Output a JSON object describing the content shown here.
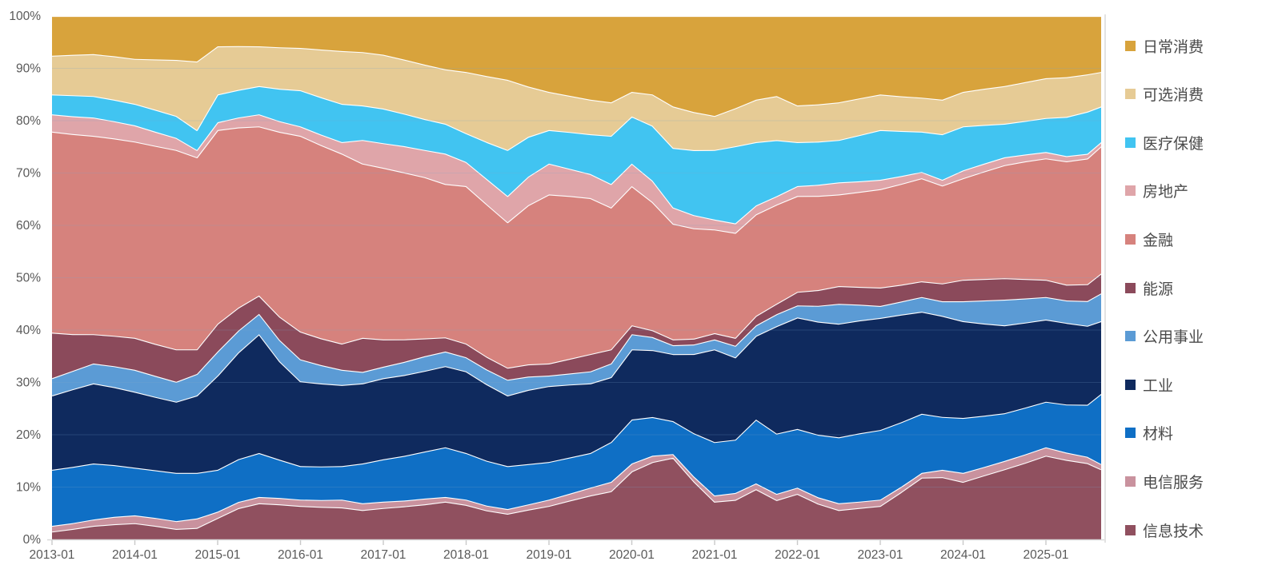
{
  "chart_data": {
    "type": "area",
    "stacked_percent": true,
    "title": "",
    "xlabel": "",
    "ylabel": "",
    "ylim": [
      0,
      100
    ],
    "x_max_month": 152,
    "x_months": [
      0,
      3,
      6,
      9,
      12,
      15,
      18,
      21,
      24,
      27,
      30,
      33,
      36,
      39,
      42,
      45,
      48,
      51,
      54,
      57,
      60,
      63,
      66,
      69,
      72,
      75,
      78,
      81,
      84,
      87,
      90,
      93,
      96,
      99,
      102,
      105,
      108,
      111,
      114,
      117,
      120,
      123,
      126,
      129,
      132,
      135,
      138,
      141,
      144,
      147,
      150,
      152
    ],
    "x_ticks": [
      {
        "m": 0,
        "label": "2013-01"
      },
      {
        "m": 12,
        "label": "2014-01"
      },
      {
        "m": 24,
        "label": "2015-01"
      },
      {
        "m": 36,
        "label": "2016-01"
      },
      {
        "m": 48,
        "label": "2017-01"
      },
      {
        "m": 60,
        "label": "2018-01"
      },
      {
        "m": 72,
        "label": "2019-01"
      },
      {
        "m": 84,
        "label": "2020-01"
      },
      {
        "m": 96,
        "label": "2021-01"
      },
      {
        "m": 108,
        "label": "2022-01"
      },
      {
        "m": 120,
        "label": "2023-01"
      },
      {
        "m": 132,
        "label": "2024-01"
      },
      {
        "m": 144,
        "label": "2025-01"
      }
    ],
    "y_ticks": [
      {
        "v": 0,
        "label": "0%"
      },
      {
        "v": 10,
        "label": "10%"
      },
      {
        "v": 20,
        "label": "20%"
      },
      {
        "v": 30,
        "label": "30%"
      },
      {
        "v": 40,
        "label": "40%"
      },
      {
        "v": 50,
        "label": "50%"
      },
      {
        "v": 60,
        "label": "60%"
      },
      {
        "v": 70,
        "label": "70%"
      },
      {
        "v": 80,
        "label": "80%"
      },
      {
        "v": 90,
        "label": "90%"
      },
      {
        "v": 100,
        "label": "100%"
      }
    ],
    "series_bottom_to_top": [
      {
        "name": "信息技术",
        "color": "#90505F",
        "values": [
          1.5,
          2.0,
          2.6,
          2.9,
          3.1,
          2.6,
          2.0,
          2.2,
          4.1,
          6.0,
          6.9,
          6.6,
          6.4,
          6.2,
          6.1,
          5.6,
          6.0,
          6.3,
          6.7,
          7.2,
          6.6,
          5.5,
          4.9,
          5.6,
          6.4,
          7.4,
          8.4,
          9.2,
          13.0,
          14.8,
          15.6,
          11.0,
          7.2,
          7.5,
          9.6,
          7.5,
          8.7,
          6.8,
          5.6,
          6.0,
          6.4,
          9.0,
          11.8,
          11.9,
          11.0,
          12.2,
          13.4,
          14.6,
          16.0,
          15.2,
          14.5,
          13.4
        ]
      },
      {
        "name": "电信服务",
        "color": "#C9929E",
        "values": [
          1.1,
          1.1,
          1.2,
          1.4,
          1.5,
          1.5,
          1.5,
          1.8,
          1.2,
          1.2,
          1.2,
          1.2,
          1.2,
          1.3,
          1.5,
          1.3,
          1.2,
          1.1,
          1.1,
          0.9,
          1.0,
          0.9,
          0.9,
          1.0,
          1.2,
          1.3,
          1.5,
          1.8,
          1.5,
          1.2,
          0.7,
          0.9,
          1.2,
          1.3,
          1.1,
          1.2,
          1.2,
          1.2,
          1.3,
          1.2,
          1.2,
          1.0,
          0.9,
          1.4,
          1.7,
          1.6,
          1.6,
          1.6,
          1.6,
          1.4,
          1.2,
          1.0
        ]
      },
      {
        "name": "材料",
        "color": "#0F6FC5",
        "values": [
          10.7,
          10.7,
          10.7,
          9.9,
          9.1,
          9.1,
          9.2,
          8.7,
          8.0,
          8.2,
          8.4,
          7.2,
          6.4,
          6.4,
          6.4,
          7.6,
          8.1,
          8.5,
          9.0,
          9.5,
          8.9,
          8.5,
          8.2,
          7.6,
          7.2,
          6.9,
          6.6,
          7.6,
          8.4,
          7.4,
          6.3,
          8.2,
          10.2,
          10.1,
          12.2,
          11.5,
          11.2,
          11.9,
          12.6,
          13.0,
          13.3,
          12.3,
          11.3,
          10.1,
          10.5,
          9.8,
          9.1,
          8.9,
          8.7,
          9.2,
          9.9,
          13.4
        ]
      },
      {
        "name": "工业",
        "color": "#0F2A5E",
        "values": [
          14.2,
          14.8,
          15.3,
          14.9,
          14.5,
          14.0,
          13.6,
          14.8,
          18.0,
          20.5,
          22.7,
          18.5,
          16.2,
          15.8,
          15.5,
          15.3,
          15.5,
          15.4,
          15.4,
          15.5,
          15.6,
          14.5,
          13.5,
          14.0,
          14.5,
          13.9,
          13.3,
          12.4,
          13.4,
          12.8,
          12.8,
          15.0,
          17.7,
          15.6,
          16.0,
          20.5,
          21.3,
          21.5,
          21.7,
          21.5,
          21.4,
          20.5,
          19.5,
          19.3,
          18.5,
          17.6,
          16.8,
          16.2,
          15.7,
          15.6,
          15.0,
          13.9
        ]
      },
      {
        "name": "公用事业",
        "color": "#5B9BD5",
        "values": [
          3.3,
          3.5,
          3.8,
          4.0,
          4.2,
          4.0,
          3.8,
          4.1,
          4.6,
          4.2,
          3.9,
          4.0,
          4.2,
          3.5,
          2.9,
          2.2,
          2.2,
          2.5,
          2.8,
          2.8,
          2.7,
          2.8,
          3.0,
          2.5,
          2.0,
          2.1,
          2.3,
          2.6,
          2.9,
          2.5,
          1.7,
          1.8,
          1.9,
          2.2,
          2.0,
          2.3,
          2.3,
          3.0,
          3.8,
          3.0,
          2.3,
          2.5,
          2.8,
          2.8,
          3.8,
          4.4,
          4.9,
          4.6,
          4.3,
          4.3,
          4.7,
          5.3
        ]
      },
      {
        "name": "能源",
        "color": "#8B4A5B",
        "values": [
          8.7,
          7.0,
          5.6,
          5.8,
          6.1,
          6.1,
          6.2,
          4.7,
          5.3,
          4.4,
          3.5,
          4.4,
          5.3,
          5.1,
          5.0,
          6.5,
          5.2,
          4.3,
          3.4,
          2.7,
          2.6,
          2.4,
          2.3,
          2.3,
          2.3,
          2.8,
          3.3,
          2.7,
          1.7,
          1.3,
          1.1,
          1.1,
          1.2,
          1.5,
          1.8,
          2.0,
          2.6,
          3.0,
          3.4,
          3.4,
          3.5,
          3.2,
          3.0,
          3.4,
          4.1,
          4.1,
          4.1,
          3.7,
          3.3,
          3.0,
          3.2,
          3.8
        ]
      },
      {
        "name": "金融",
        "color": "#D6827D",
        "values": [
          38.4,
          38.1,
          37.9,
          37.7,
          37.5,
          37.8,
          38.1,
          36.7,
          37.0,
          34.6,
          32.3,
          34.8,
          37.4,
          36.8,
          36.3,
          33.3,
          32.8,
          31.8,
          30.8,
          29.3,
          30.1,
          28.9,
          27.8,
          30.0,
          32.3,
          31.0,
          29.8,
          27.1,
          26.6,
          24.5,
          22.1,
          20.9,
          19.8,
          19.9,
          19.4,
          18.9,
          18.3,
          17.9,
          17.5,
          18.1,
          18.8,
          19.2,
          19.7,
          18.7,
          19.4,
          20.5,
          21.6,
          22.4,
          23.2,
          23.6,
          23.9,
          24.3
        ]
      },
      {
        "name": "房地产",
        "color": "#DFA5A9",
        "values": [
          3.3,
          3.4,
          3.5,
          3.3,
          3.1,
          2.7,
          2.3,
          1.4,
          1.5,
          1.9,
          2.3,
          2.0,
          1.8,
          2.0,
          2.2,
          4.5,
          4.7,
          5.0,
          5.2,
          5.8,
          4.6,
          4.8,
          5.0,
          5.4,
          5.9,
          5.2,
          4.6,
          4.5,
          4.3,
          4.1,
          3.1,
          2.5,
          1.9,
          1.8,
          1.7,
          1.6,
          1.9,
          2.1,
          2.3,
          2.0,
          1.8,
          1.5,
          1.2,
          1.1,
          1.5,
          1.5,
          1.5,
          1.3,
          1.2,
          1.0,
          0.9,
          0.8
        ]
      },
      {
        "name": "医疗保健",
        "color": "#41C4F1",
        "values": [
          3.8,
          4.0,
          4.1,
          4.1,
          4.1,
          4.2,
          4.2,
          3.8,
          5.3,
          5.3,
          5.4,
          6.1,
          6.9,
          7.1,
          7.3,
          6.6,
          6.6,
          6.2,
          5.9,
          5.7,
          5.5,
          7.0,
          8.8,
          7.5,
          6.4,
          7.0,
          7.6,
          9.2,
          9.0,
          10.5,
          11.4,
          12.3,
          13.3,
          14.6,
          12.1,
          10.7,
          8.4,
          8.2,
          8.1,
          8.8,
          9.5,
          8.6,
          7.7,
          8.7,
          8.4,
          7.4,
          6.4,
          6.4,
          6.5,
          7.5,
          8.0,
          6.8
        ]
      },
      {
        "name": "可选消费",
        "color": "#E6CB95",
        "values": [
          7.4,
          7.7,
          8.0,
          8.3,
          8.6,
          9.6,
          10.7,
          13.1,
          9.2,
          8.4,
          7.6,
          7.8,
          8.1,
          9.1,
          10.1,
          10.2,
          10.3,
          10.3,
          10.4,
          10.4,
          11.7,
          12.5,
          13.4,
          9.5,
          7.3,
          6.9,
          6.6,
          6.4,
          4.7,
          6.0,
          7.9,
          7.2,
          6.5,
          7.2,
          8.1,
          8.4,
          7.0,
          7.1,
          7.2,
          7.0,
          6.8,
          6.6,
          6.5,
          6.6,
          6.6,
          6.9,
          7.2,
          7.4,
          7.6,
          7.6,
          7.1,
          6.6
        ]
      },
      {
        "name": "日常消费",
        "color": "#D8A33C",
        "values": [
          7.6,
          7.4,
          7.3,
          7.7,
          8.2,
          8.3,
          8.4,
          8.7,
          5.8,
          5.8,
          5.8,
          5.9,
          6.1,
          6.4,
          6.7,
          6.9,
          7.4,
          8.3,
          9.3,
          10.2,
          10.7,
          11.4,
          12.2,
          13.3,
          14.5,
          15.2,
          16.0,
          16.5,
          14.5,
          15.0,
          17.3,
          18.2,
          19.1,
          17.5,
          16.0,
          15.3,
          17.1,
          16.8,
          16.5,
          15.7,
          15.0,
          15.3,
          15.6,
          16.0,
          14.5,
          13.9,
          13.4,
          12.6,
          11.9,
          11.7,
          11.1,
          10.7
        ]
      }
    ],
    "legend_top_to_bottom": [
      "日常消费",
      "可选消费",
      "医疗保健",
      "房地产",
      "金融",
      "能源",
      "公用事业",
      "工业",
      "材料",
      "电信服务",
      "信息技术"
    ],
    "legend_position": "right",
    "grid_on": true,
    "boundary_stroke_color": "#ffffff",
    "gridline_color": "rgba(125,162,200,0.22)",
    "axis_line_color": "#d9d9d9",
    "tick_color": "#c9c9c9",
    "axis_text_color": "#595959"
  }
}
